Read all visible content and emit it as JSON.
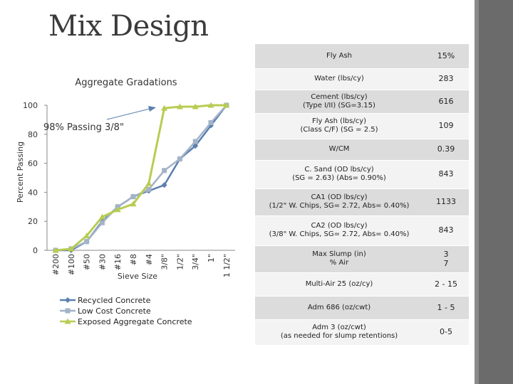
{
  "slide": {
    "title": "Mix Design"
  },
  "chart_data": {
    "type": "line",
    "title": "Aggregate Gradations",
    "xlabel": "Sieve Size",
    "ylabel": "Percent Passing",
    "categories": [
      "#200",
      "#100",
      "#50",
      "#30",
      "#16",
      "#8",
      "#4",
      "3/8\"",
      "1/2\"",
      "3/4\"",
      "1\"",
      "1 1/2\""
    ],
    "ylim": [
      0,
      100
    ],
    "yticks": [
      "0",
      "20",
      "40",
      "60",
      "80",
      "100"
    ],
    "series": [
      {
        "name": "Recycled Concrete",
        "color": "#5b7fb0",
        "marker": "diamond",
        "values": [
          0,
          0,
          6,
          20,
          30,
          37,
          41,
          45,
          63,
          72,
          86,
          100
        ]
      },
      {
        "name": "Low Cost Concrete",
        "color": "#a3b3c8",
        "marker": "square",
        "values": [
          0,
          1,
          6,
          19,
          30,
          37,
          42,
          55,
          63,
          75,
          88,
          100
        ]
      },
      {
        "name": "Exposed Aggregate Concrete",
        "color": "#b8cc52",
        "marker": "triangle",
        "values": [
          0,
          1,
          10,
          23,
          28,
          32,
          46,
          98,
          99,
          99,
          100,
          100
        ]
      }
    ],
    "legend_position": "bottom",
    "annotation": "98% Passing 3/8\"",
    "grid": false
  },
  "table": {
    "rows": [
      {
        "label": "Fly Ash",
        "value": "15%"
      },
      {
        "label": "Water (lbs/cy)",
        "value": "283"
      },
      {
        "label": "Cement (lbs/cy)\n(Type I/II) (SG=3.15)",
        "value": "616"
      },
      {
        "label": "Fly Ash (lbs/cy)\n(Class C/F) (SG = 2.5)",
        "value": "109"
      },
      {
        "label": "W/CM",
        "value": "0.39"
      },
      {
        "label": "C. Sand (OD lbs/cy)\n(SG = 2.63) (Abs= 0.90%)",
        "value": "843"
      },
      {
        "label": "CA1 (OD lbs/cy)\n(1/2\" W. Chips, SG= 2.72, Abs= 0.40%)",
        "value": "1133"
      },
      {
        "label": "CA2 (OD lbs/cy)\n(3/8\" W. Chips, SG= 2.72, Abs= 0.40%)",
        "value": "843"
      },
      {
        "label": "Max Slump (in)\n% Air",
        "value": "3\n7"
      },
      {
        "label": "Multi-Air 25 (oz/cy)",
        "value": "2 - 15"
      },
      {
        "label": "Adm 686 (oz/cwt)",
        "value": "1 - 5"
      },
      {
        "label": "Adm 3 (oz/cwt)\n(as needed for slump retentions)",
        "value": "0-5"
      }
    ]
  }
}
